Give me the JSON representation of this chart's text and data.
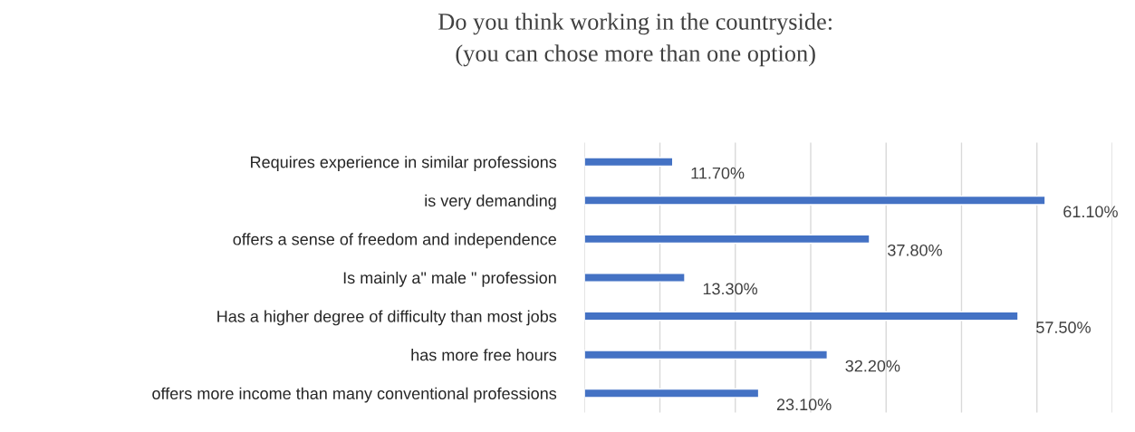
{
  "chart_data": {
    "type": "bar",
    "orientation": "horizontal",
    "title": "Do you think working in the countryside:\n(you can chose more than one option)",
    "categories": [
      "Requires experience in similar professions",
      "is very demanding",
      "offers a sense of freedom and independence",
      "Is mainly a\" male \" profession",
      "Has a higher degree of difficulty than most jobs",
      "has more free hours",
      "offers more income than many conventional professions"
    ],
    "values": [
      11.7,
      61.1,
      37.8,
      13.3,
      57.5,
      32.2,
      23.1
    ],
    "value_labels": [
      "11.70%",
      "61.10%",
      "37.80%",
      "13.30%",
      "57.50%",
      "32.20%",
      "23.10%"
    ],
    "color": "#4472c4",
    "xlim": [
      0,
      70
    ],
    "xticks": [
      {
        "value": 0,
        "label": null
      },
      {
        "value": 10,
        "label": null
      },
      {
        "value": 20,
        "label": null
      },
      {
        "value": 30,
        "label": null
      },
      {
        "value": 40,
        "label": null
      },
      {
        "value": 50,
        "label": null
      },
      {
        "value": 60,
        "label": null
      },
      {
        "value": 70,
        "label": null
      }
    ],
    "grid": "x",
    "tick_labels": "y",
    "legend": false
  }
}
